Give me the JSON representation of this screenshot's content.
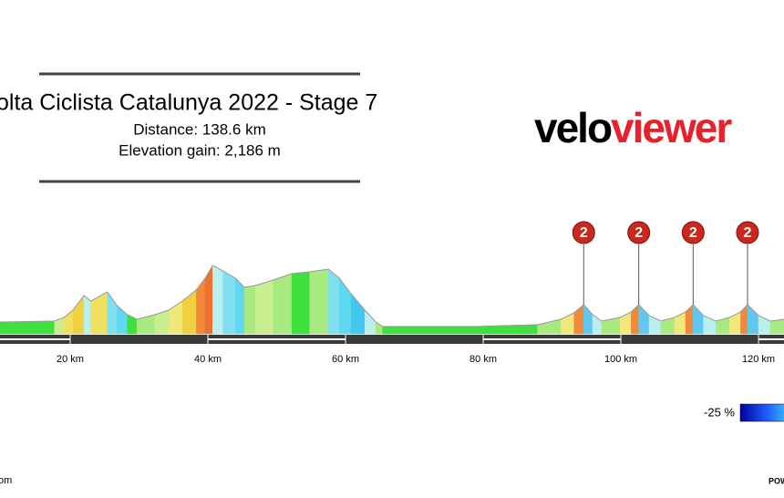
{
  "chart_data": {
    "type": "elevation-profile",
    "title": "olta Ciclista Catalunya 2022 - Stage 7",
    "subtitle_lines": [
      "Distance: 138.6 km",
      "Elevation gain: 2,186 m"
    ],
    "logo": [
      "velo",
      "viewer"
    ],
    "x": [
      9.8,
      17.7,
      19.1,
      20.4,
      22.0,
      23.0,
      25.4,
      26.8,
      28.3,
      29.7,
      32.3,
      34.3,
      36.3,
      38.3,
      39.6,
      40.7,
      42.2,
      44.0,
      45.3,
      46.9,
      49.5,
      52.2,
      54.8,
      57.5,
      59.1,
      60.8,
      62.8,
      64.4,
      65.4,
      78.7,
      87.9,
      91.3,
      93.2,
      94.6,
      95.9,
      97.2,
      99.9,
      101.5,
      102.6,
      104.1,
      105.8,
      107.8,
      109.4,
      110.5,
      112.0,
      113.8,
      115.8,
      117.4,
      118.4,
      120.0,
      121.7,
      123.7
    ],
    "values": [
      130,
      140,
      180,
      260,
      420,
      360,
      460,
      310,
      210,
      160,
      210,
      260,
      360,
      480,
      610,
      750,
      690,
      610,
      510,
      530,
      590,
      660,
      680,
      710,
      610,
      440,
      260,
      130,
      80,
      80,
      100,
      160,
      230,
      320,
      210,
      140,
      180,
      240,
      320,
      200,
      140,
      180,
      240,
      320,
      200,
      140,
      180,
      240,
      320,
      200,
      140,
      160
    ],
    "segment_colors": [
      "#3ee03e",
      "#c8ee90",
      "#f0e060",
      "#f0d040",
      "#b8f0f0",
      "#f0e060",
      "#80e0f0",
      "#60d8f0",
      "#3ee03e",
      "#a8ea80",
      "#c8ee90",
      "#f0e87a",
      "#f0d040",
      "#f08a3a",
      "#f07030",
      "#b8f0f0",
      "#80e0f0",
      "#60d8f0",
      "#a8ea80",
      "#c8ee90",
      "#a8ea80",
      "#3ee03e",
      "#a8ea80",
      "#80e0f0",
      "#60d8f0",
      "#40c8f0",
      "#b8f0f0",
      "#a8ea80",
      "#3ee03e",
      "#3ee03e",
      "#a8ea80",
      "#f0e87a",
      "#f08a3a",
      "#60c8f0",
      "#b8f0f0",
      "#a8ea80",
      "#f0e87a",
      "#f08a3a",
      "#60c8f0",
      "#b8f0f0",
      "#a8ea80",
      "#f0e87a",
      "#f08a3a",
      "#60c8f0",
      "#b8f0f0",
      "#a8ea80",
      "#f0e87a",
      "#f08a3a",
      "#60c8f0",
      "#b8f0f0",
      "#a8ea80"
    ],
    "xlim": [
      9.8,
      123.7
    ],
    "ylim": [
      0,
      1000
    ],
    "xticks": [
      {
        "value": 20,
        "label": "20 km"
      },
      {
        "value": 40,
        "label": "40 km"
      },
      {
        "value": 60,
        "label": "60 km"
      },
      {
        "value": 80,
        "label": "80 km"
      },
      {
        "value": 100,
        "label": "100 km"
      },
      {
        "value": 120,
        "label": "120 km"
      }
    ],
    "climbs": [
      {
        "km": 94.6,
        "category": 2
      },
      {
        "km": 102.6,
        "category": 2
      },
      {
        "km": 110.5,
        "category": 2
      },
      {
        "km": 118.4,
        "category": 2
      }
    ],
    "legend_label": "-25 %",
    "footer_left": "om",
    "footer_right": "POW"
  }
}
